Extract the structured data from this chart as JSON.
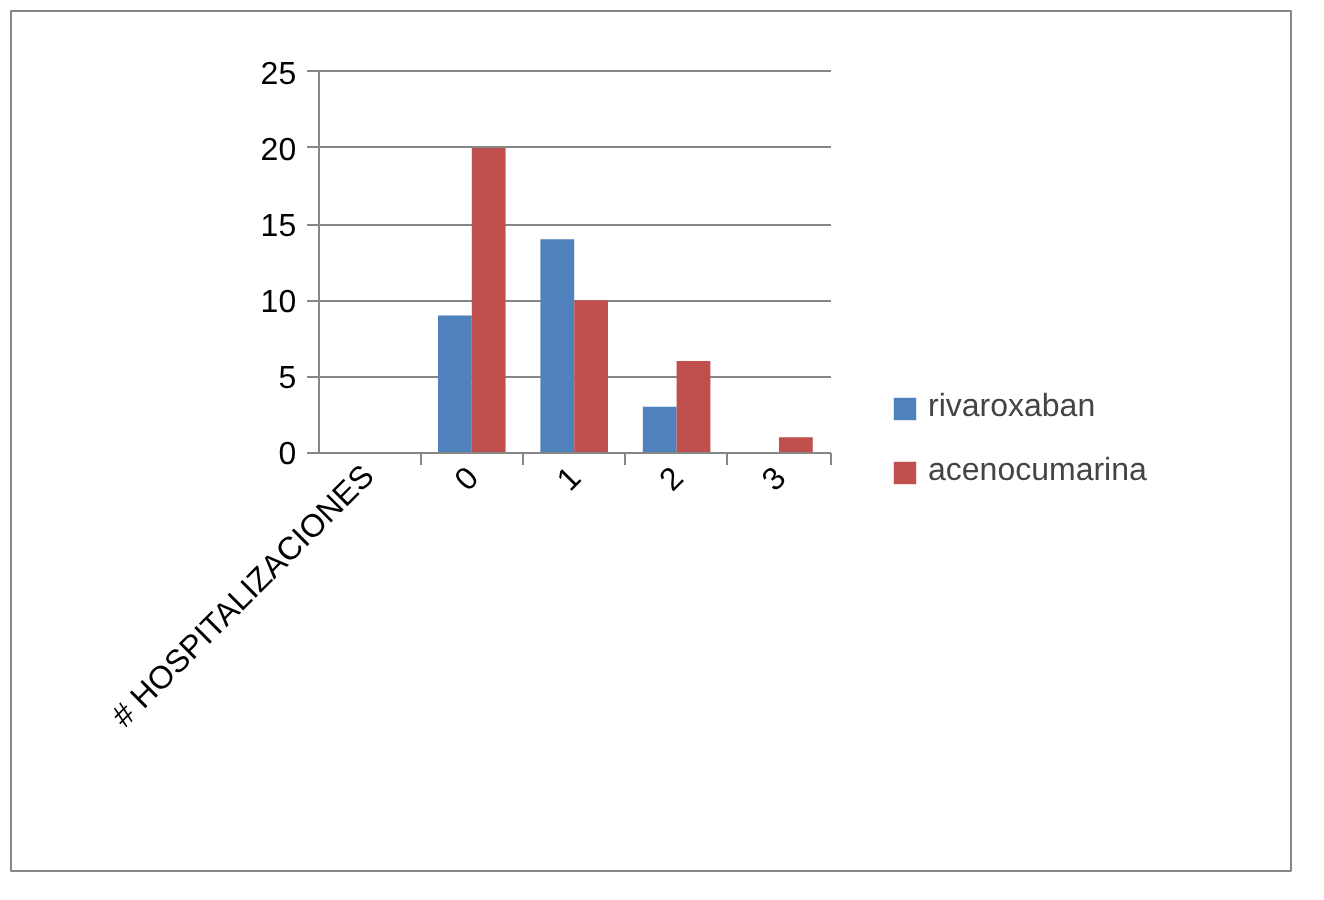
{
  "chart_data": {
    "type": "bar",
    "categories": [
      "# HOSPITALIZACIONES",
      "0",
      "1",
      "2",
      "3"
    ],
    "series": [
      {
        "name": "rivaroxaban",
        "color": "#4f81bd",
        "values": [
          null,
          9,
          14,
          3,
          0
        ]
      },
      {
        "name": "acenocumarina",
        "color": "#c0504d",
        "values": [
          null,
          20,
          10,
          6,
          1
        ]
      }
    ],
    "ylim": [
      0,
      25
    ],
    "yticks": [
      0,
      5,
      10,
      15,
      20,
      25
    ],
    "grid": "y",
    "legend": "right"
  }
}
